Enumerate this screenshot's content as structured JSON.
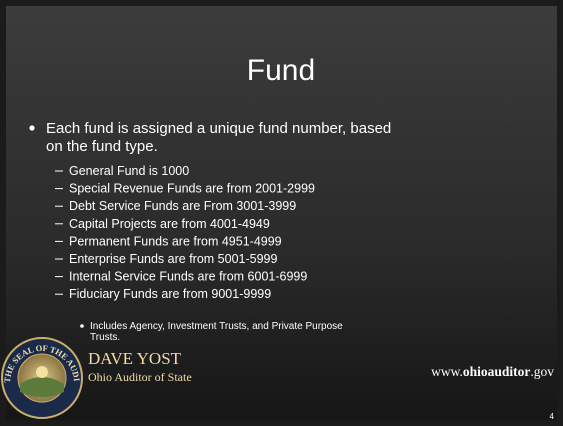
{
  "slide": {
    "title": "Fund",
    "lead_lines": [
      "Each fund is assigned a unique fund number, based",
      "on the fund type."
    ],
    "items": [
      "General Fund is 1000",
      "Special Revenue Funds are from 2001-2999",
      "Debt Service Funds are From 3001-3999",
      "Capital Projects are from 4001-4949",
      "Permanent Funds are from 4951-4999",
      "Enterprise Funds are from 5001-5999",
      "Internal Service Funds are from 6001-6999",
      "Fiduciary Funds are from 9001-9999"
    ],
    "note_lines": [
      "Includes Agency, Investment Trusts, and Private Purpose",
      "Trusts."
    ],
    "footer": {
      "seal_text": "THE SEAL OF THE AUDITOR OF STATE OF OHIO",
      "name": "DAVE YOST",
      "office": "Ohio Auditor of State",
      "url_parts": [
        "www.",
        "ohioauditor",
        ".gov"
      ],
      "page_number": "4"
    }
  }
}
